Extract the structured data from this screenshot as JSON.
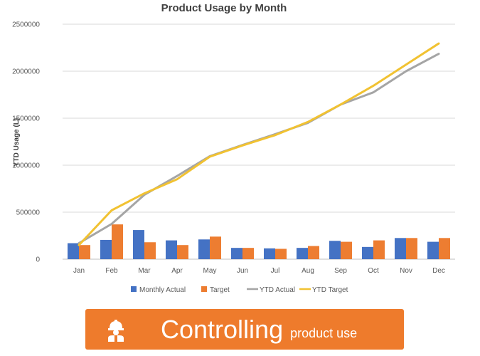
{
  "chart_data": {
    "type": "bar",
    "title": "Product Usage by Month",
    "xlabel": "",
    "ylabel": "YTD Usage (L)",
    "ylim": [
      0,
      2500000
    ],
    "yticks": [
      "0",
      "500000",
      "1000000",
      "1500000",
      "2000000",
      "2500000"
    ],
    "grid": true,
    "legend_position": "bottom",
    "categories": [
      "Jan",
      "Feb",
      "Mar",
      "Apr",
      "May",
      "Jun",
      "Jul",
      "Aug",
      "Sep",
      "Oct",
      "Nov",
      "Dec"
    ],
    "series": [
      {
        "name": "Monthly Actual",
        "type": "bar",
        "color": "#4472c4",
        "values": [
          170000,
          205000,
          310000,
          200000,
          210000,
          120000,
          115000,
          120000,
          195000,
          130000,
          225000,
          185000
        ]
      },
      {
        "name": "Target",
        "type": "bar",
        "color": "#ed7d31",
        "values": [
          150000,
          370000,
          180000,
          150000,
          240000,
          120000,
          110000,
          140000,
          185000,
          200000,
          225000,
          225000
        ]
      },
      {
        "name": "YTD Actual",
        "type": "line",
        "color": "#a5a5a5",
        "values": [
          170000,
          375000,
          685000,
          885000,
          1095000,
          1215000,
          1330000,
          1450000,
          1645000,
          1775000,
          2000000,
          2185000
        ]
      },
      {
        "name": "YTD Target",
        "type": "line",
        "color": "#f1c232",
        "values": [
          150000,
          520000,
          700000,
          850000,
          1090000,
          1210000,
          1320000,
          1460000,
          1645000,
          1845000,
          2070000,
          2295000
        ]
      }
    ]
  },
  "banner": {
    "main_text": "Controlling",
    "sub_text": "product use",
    "icon": "construction-worker-icon",
    "color": "#ee7b2c"
  }
}
